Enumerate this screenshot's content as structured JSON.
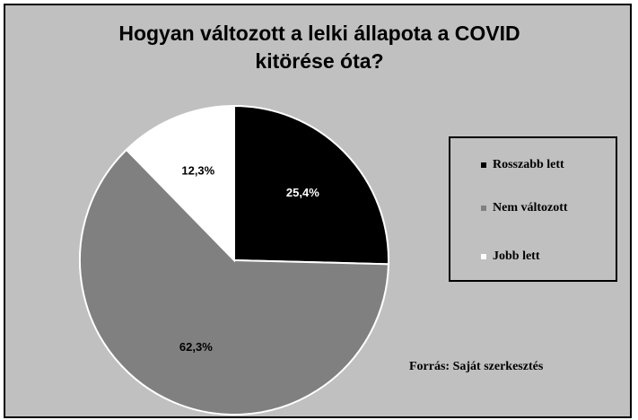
{
  "chart_data": {
    "type": "pie",
    "title": "Hogyan változott a lelki állapota a COVID kitörése óta?",
    "categories": [
      "Rosszabb lett",
      "Nem változott",
      "Jobb lett"
    ],
    "values": [
      25.4,
      62.3,
      12.3
    ],
    "value_labels": [
      "25,4%",
      "62,3%",
      "12,3%"
    ],
    "colors": [
      "#000000",
      "#808080",
      "#ffffff"
    ],
    "legend": "right",
    "annotation": "Forrás: Saját szerkesztés"
  }
}
